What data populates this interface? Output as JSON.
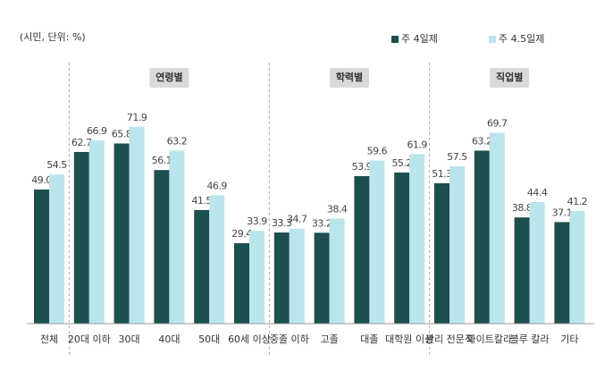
{
  "chart_data": {
    "type": "bar",
    "unit_note": "(시민, 단위: %)",
    "categories": [
      "전체",
      "20대 이하",
      "30대",
      "40대",
      "50대",
      "60세 이상",
      "중졸 이하",
      "고졸",
      "대졸",
      "대학원 이상",
      "관리 전문직",
      "화이트칼라",
      "블루 칼라",
      "기타"
    ],
    "groups": [
      "연령별",
      "학력별",
      "직업별"
    ],
    "series": [
      {
        "name": "주 4일제",
        "color": "#1d4f50",
        "values": [
          49.0,
          62.7,
          65.8,
          56.1,
          41.5,
          29.4,
          33.3,
          33.2,
          53.9,
          55.2,
          51.3,
          63.2,
          38.8,
          37.1
        ],
        "value_labels": [
          "49.0",
          "62.7",
          "65.8",
          "56.1",
          "41.5",
          "29.4",
          "33.3",
          "33.2",
          "53.9",
          "55.2",
          "51.3",
          "63.2",
          "38.8",
          "37.1"
        ]
      },
      {
        "name": "주 4.5일제",
        "color": "#b9e5eb",
        "values": [
          54.5,
          66.9,
          71.9,
          63.2,
          46.9,
          33.9,
          34.7,
          38.4,
          59.6,
          61.9,
          57.5,
          69.7,
          44.4,
          41.2
        ],
        "value_labels": [
          "54.5",
          "66.9",
          "71.9",
          "63.2",
          "46.9",
          "33.9",
          "34.7",
          "38.4",
          "59.6",
          "61.9",
          "57.5",
          "69.7",
          "44.4",
          "41.2"
        ]
      }
    ],
    "ylim": [
      0,
      80
    ]
  }
}
